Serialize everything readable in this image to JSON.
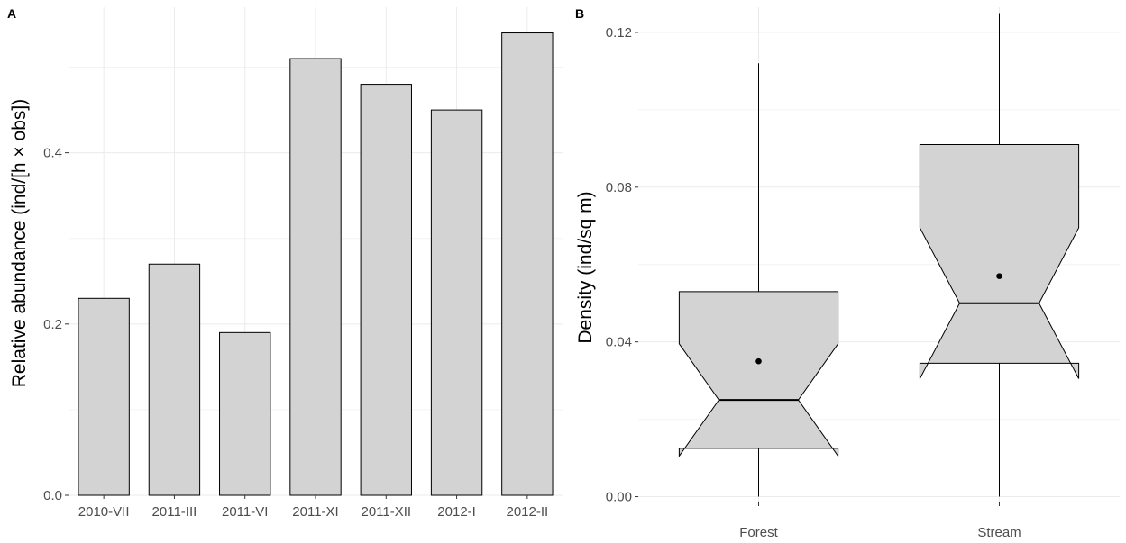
{
  "chart_data": [
    {
      "panel": "A",
      "type": "bar",
      "ylabel": "Relative abundance (ind/[h × obs])",
      "xlabel": "",
      "categories": [
        "2010-VII",
        "2011-III",
        "2011-VI",
        "2011-XI",
        "2011-XII",
        "2012-I",
        "2012-II"
      ],
      "values": [
        0.23,
        0.27,
        0.19,
        0.51,
        0.48,
        0.45,
        0.54
      ],
      "ylim": [
        0,
        0.57
      ],
      "yticks": [
        0.0,
        0.2,
        0.4
      ],
      "ytick_labels": [
        "0.0",
        "0.2",
        "0.4"
      ],
      "bar_fill": "#d3d3d3",
      "bar_stroke": "#000000",
      "grid": true
    },
    {
      "panel": "B",
      "type": "boxplot",
      "notched": true,
      "ylabel": "Density (ind/sq m)",
      "xlabel": "",
      "categories": [
        "Forest",
        "Stream"
      ],
      "boxes": [
        {
          "name": "Forest",
          "whisker_low": 0.0,
          "q1": 0.0125,
          "median": 0.025,
          "q3": 0.053,
          "whisker_high": 0.112,
          "notch_low": 0.0105,
          "notch_high": 0.0395,
          "mean": 0.035
        },
        {
          "name": "Stream",
          "whisker_low": 0.0,
          "q1": 0.0345,
          "median": 0.05,
          "q3": 0.091,
          "whisker_high": 0.125,
          "notch_low": 0.0305,
          "notch_high": 0.0695,
          "mean": 0.057
        }
      ],
      "ylim": [
        -0.0015,
        0.1265
      ],
      "yticks": [
        0.0,
        0.04,
        0.08,
        0.12
      ],
      "ytick_labels": [
        "0.00",
        "0.04",
        "0.08",
        "0.12"
      ],
      "box_fill": "#d3d3d3",
      "box_stroke": "#000000",
      "grid": true
    }
  ]
}
